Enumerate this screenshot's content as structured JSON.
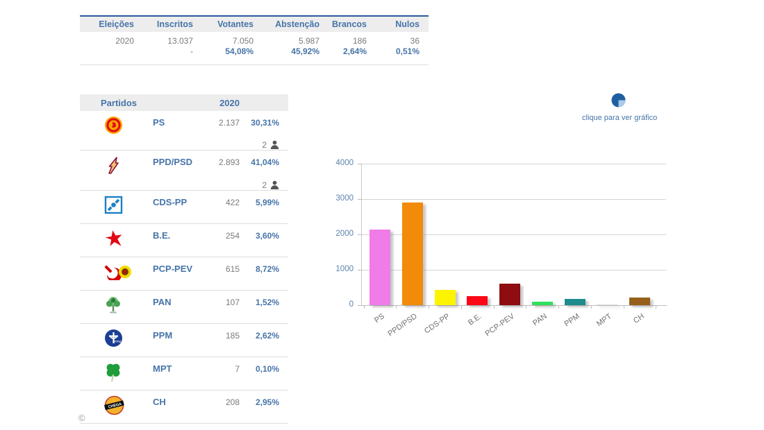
{
  "summary_table": {
    "headers": [
      "Eleições",
      "Inscritos",
      "Votantes",
      "Abstenção",
      "Brancos",
      "Nulos"
    ],
    "counts": [
      "2020",
      "13.037",
      "7.050",
      "5.987",
      "186",
      "36"
    ],
    "percents": [
      "",
      "-",
      "54,08%",
      "45,92%",
      "2,64%",
      "0,51%"
    ]
  },
  "parties_table": {
    "header_partidos": "Partidos",
    "header_year": "2020",
    "rows": [
      {
        "icon": "ps-logo",
        "name": "PS",
        "votes": "2.137",
        "pct": "30,31%",
        "mandates": "2"
      },
      {
        "icon": "psd-logo",
        "name": "PPD/PSD",
        "votes": "2.893",
        "pct": "41,04%",
        "mandates": "2"
      },
      {
        "icon": "cds-logo",
        "name": "CDS-PP",
        "votes": "422",
        "pct": "5,99%"
      },
      {
        "icon": "be-logo",
        "name": "B.E.",
        "votes": "254",
        "pct": "3,60%"
      },
      {
        "icon": "pcp-logo",
        "name": "PCP-PEV",
        "votes": "615",
        "pct": "8,72%"
      },
      {
        "icon": "pan-logo",
        "name": "PAN",
        "votes": "107",
        "pct": "1,52%"
      },
      {
        "icon": "ppm-logo",
        "name": "PPM",
        "votes": "185",
        "pct": "2,62%"
      },
      {
        "icon": "mpt-logo",
        "name": "MPT",
        "votes": "7",
        "pct": "0,10%"
      },
      {
        "icon": "chega-logo",
        "name": "CH",
        "votes": "208",
        "pct": "2,95%"
      }
    ]
  },
  "chart_link": {
    "label": "clique para ver gráfico",
    "icon": "pie-chart-icon"
  },
  "chart_data": {
    "type": "bar",
    "categories": [
      "PS",
      "PPD/PSD",
      "CDS-PP",
      "B.E.",
      "PCP-PEV",
      "PAN",
      "PPM",
      "MPT",
      "CH"
    ],
    "values": [
      2137,
      2893,
      422,
      254,
      615,
      107,
      185,
      7,
      208
    ],
    "bar_colors": [
      "#f07ce8",
      "#f28a0a",
      "#fdf402",
      "#fb0716",
      "#8d0d10",
      "#2ee05c",
      "#1d8c8c",
      "#dcdcdc",
      "#96601a"
    ],
    "title": "",
    "xlabel": "",
    "ylabel": "",
    "ylim": [
      0,
      4000
    ],
    "yticks": [
      0,
      1000,
      2000,
      3000,
      4000
    ],
    "grid": true,
    "legend": false
  },
  "footer": {
    "copyright": "©"
  },
  "colors": {
    "accent_blue": "#4674a9",
    "text_gray": "#7a7a7a",
    "header_bg": "#ededed",
    "header_top_border": "#2a5a9c",
    "pie_dark": "#1e5fa0",
    "pie_light": "#a9cbe9"
  }
}
